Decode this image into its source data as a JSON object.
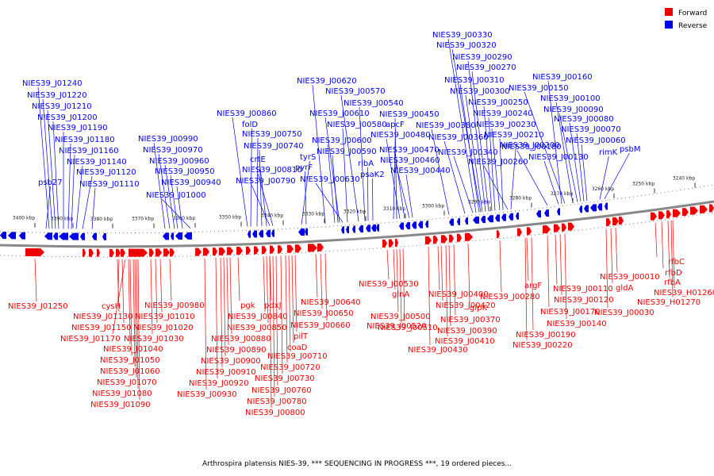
{
  "caption": "Arthrospira platensis NIES-39, *** SEQUENCING IN PROGRESS ***, 19 ordered pieces...",
  "legend": [
    {
      "label": "Forward",
      "color": "#ee0000"
    },
    {
      "label": "Reverse",
      "color": "#0000ee"
    }
  ],
  "ticks": [
    "3400 kbp",
    "3390 kbp",
    "3380 kbp",
    "3370 kbp",
    "3360 kbp",
    "3350 kbp",
    "3340 kbp",
    "3330 kbp",
    "3320 kbp",
    "3310 kbp",
    "3300 kbp",
    "3290 kbp",
    "3280 kbp",
    "3270 kbp",
    "3260 kbp",
    "3250 kbp",
    "3240 kbp"
  ],
  "reverse_labels": [
    "psb27",
    "NIES39_J01240",
    "NIES39_J01220",
    "NIES39_J01210",
    "NIES39_J01200",
    "NIES39_J01190",
    "NIES39_J01180",
    "NIES39_J01160",
    "NIES39_J01140",
    "NIES39_J01120",
    "NIES39_J01110",
    "NIES39_J00990",
    "NIES39_J00970",
    "NIES39_J00960",
    "NIES39_J00950",
    "NIES39_J00940",
    "NIES39_J01000",
    "NIES39_J00860",
    "folD",
    "NIES39_J00750",
    "NIES39_J00740",
    "crtE",
    "NIES39_J00810",
    "NIES39_J00790",
    "tyrS",
    "pyrF",
    "NIES39_J00620",
    "NIES39_J00610",
    "NIES39_J00580",
    "NIES39_J00600",
    "NIES39_J00590",
    "NIES39_J00630",
    "NIES39_J00570",
    "NIES39_J00540",
    "ribA",
    "psaK2",
    "NIES39_J00450",
    "apcF",
    "NIES39_J00480",
    "NIES39_J00470",
    "NIES39_J00460",
    "NIES39_J00440",
    "NIES39_J00330",
    "NIES39_J00320",
    "NIES39_J00290",
    "NIES39_J00270",
    "NIES39_J00310",
    "NIES39_J00300",
    "NIES39_J00250",
    "NIES39_J00240",
    "NIES39_J00230",
    "NIES39_J00380",
    "NIES39_J00360",
    "NIES39_J00210",
    "NIES39_J00340",
    "NIES39_J00200",
    "NIES39_J00260",
    "NIES39_J00160",
    "NIES39_J00150",
    "NIES39_J00100",
    "NIES39_J00090",
    "NIES39_J00080",
    "NIES39_J00070",
    "NIES39_J00060",
    "NIES39_J00180",
    "NIES39_J00130",
    "rimK",
    "psbM"
  ],
  "forward_labels": [
    "NIES39_J01250",
    "cysH",
    "NIES39_J01130",
    "NIES39_J01150",
    "NIES39_J01170",
    "NIES39_J01040",
    "NIES39_J01050",
    "NIES39_J01060",
    "NIES39_J01070",
    "NIES39_J01080",
    "NIES39_J01090",
    "NIES39_J00980",
    "NIES39_J01010",
    "NIES39_J01020",
    "NIES39_J01030",
    "pgk",
    "pdxJ",
    "NIES39_J00840",
    "NIES39_J00850",
    "NIES39_J00880",
    "NIES39_J00890",
    "NIES39_J00900",
    "NIES39_J00910",
    "NIES39_J00920",
    "NIES39_J00930",
    "pilT",
    "coaD",
    "NIES39_J00710",
    "NIES39_J00720",
    "NIES39_J00730",
    "NIES39_J00760",
    "NIES39_J00780",
    "NIES39_J00800",
    "NIES39_J00640",
    "NIES39_J00650",
    "NIES39_J00660",
    "NIES39_J00530",
    "glnA",
    "NIES39_J00500",
    "NIES39_J00510",
    "NIES39_J00520",
    "NIES39_J00400",
    "NIES39_J00420",
    "NIES39_J00430",
    "glpK",
    "NIES39_J00370",
    "NIES39_J00390",
    "NIES39_J00410",
    "NIES39_J00280",
    "argF",
    "NIES39_J00170",
    "NIES39_J00190",
    "NIES39_J00220",
    "NIES39_J00110",
    "NIES39_J00120",
    "NIES39_J00140",
    "NIES39_J00010",
    "gldA",
    "NIES39_J00030",
    "rfbC",
    "rfbD",
    "rfbA",
    "NIES39_H01260",
    "NIES39_H01270"
  ]
}
